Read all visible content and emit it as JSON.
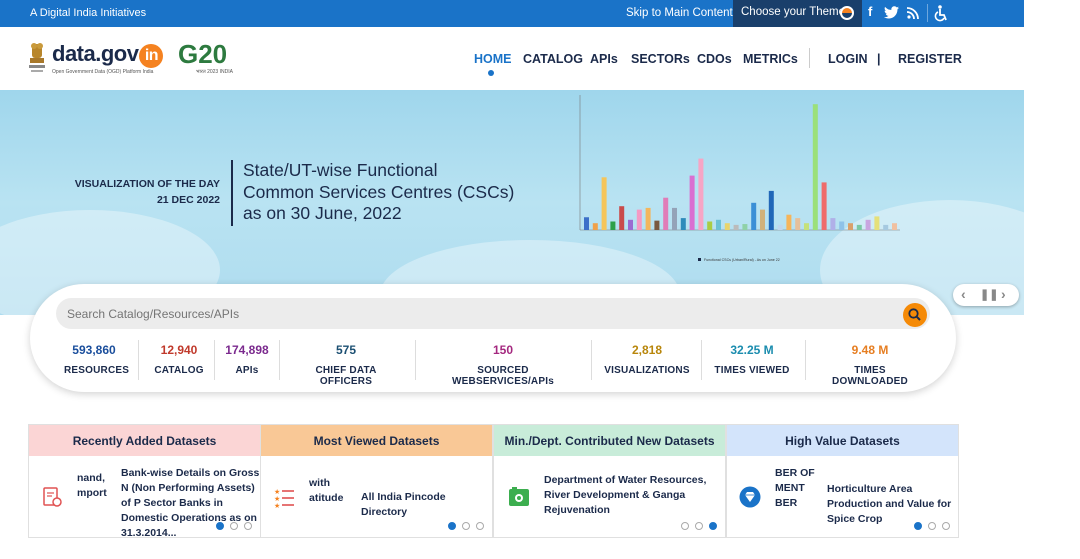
{
  "topbar": {
    "tagline": "A Digital India Initiatives",
    "skip_link": "Skip to Main Content",
    "theme_label": "Choose your Theme"
  },
  "header": {
    "logo_text": "data.gov",
    "logo_badge": "in",
    "logo_sub": "Open Government Data (OGD) Platform India",
    "g20_text": "G20",
    "g20_sub": "भारत 2023 INDIA",
    "nav": [
      "HOME",
      "CATALOG",
      "APIs",
      "SECTORs",
      "CDOs",
      "METRICs"
    ],
    "login": "LOGIN",
    "separator": "|",
    "register": "REGISTER",
    "active_nav": "HOME"
  },
  "hero": {
    "label": "VISUALIZATION OF THE DAY",
    "date": "21 DEC 2022",
    "title_line1": "State/UT-wise Functional",
    "title_line2": "Common Services Centres (CSCs)",
    "title_line3": "as on 30 June, 2022",
    "chart_legend": "Functional CSCs (Urban/Rural) - As on June 22"
  },
  "search": {
    "placeholder": "Search Catalog/Resources/APIs"
  },
  "stats": [
    {
      "value": "593,860",
      "label": "RESOURCES",
      "color": "#1a4e9c"
    },
    {
      "value": "12,940",
      "label": "CATALOG",
      "color": "#c0392b"
    },
    {
      "value": "174,898",
      "label": "APIs",
      "color": "#7b2a8e"
    },
    {
      "value": "575",
      "label": "CHIEF DATA OFFICERS",
      "color": "#1b4f72"
    },
    {
      "value": "150",
      "label": "SOURCED WEBSERVICES/APIs",
      "color": "#a4287f"
    },
    {
      "value": "2,818",
      "label": "VISUALIZATIONS",
      "color": "#b8860b"
    },
    {
      "value": "32.25 M",
      "label": "TIMES VIEWED",
      "color": "#1a8cae"
    },
    {
      "value": "9.48 M",
      "label": "TIMES DOWNLOADED",
      "color": "#e67e22"
    }
  ],
  "panels": [
    {
      "title": "Recently Added Datasets",
      "head_color": "#fbd5d5",
      "prev_text": "nand,\nmport",
      "item": "Bank-wise Details on Gross N (Non Performing Assets) of P Sector Banks in Domestic Operations as on 31.3.2014..."
    },
    {
      "title": "Most Viewed Datasets",
      "head_color": "#f9c896",
      "prev_text": "with\natitude",
      "item": "All India Pincode Directory"
    },
    {
      "title": "Min./Dept. Contributed New Datasets",
      "head_color": "#c8ecd9",
      "item": "Department of Water Resources, River Development & Ganga Rejuvenation"
    },
    {
      "title": "High Value Datasets",
      "head_color": "#d3e4fb",
      "prev_text": "BER OF\nMENT\nBER",
      "item": "Horticulture Area Production and Value for Spice Crop"
    }
  ]
}
